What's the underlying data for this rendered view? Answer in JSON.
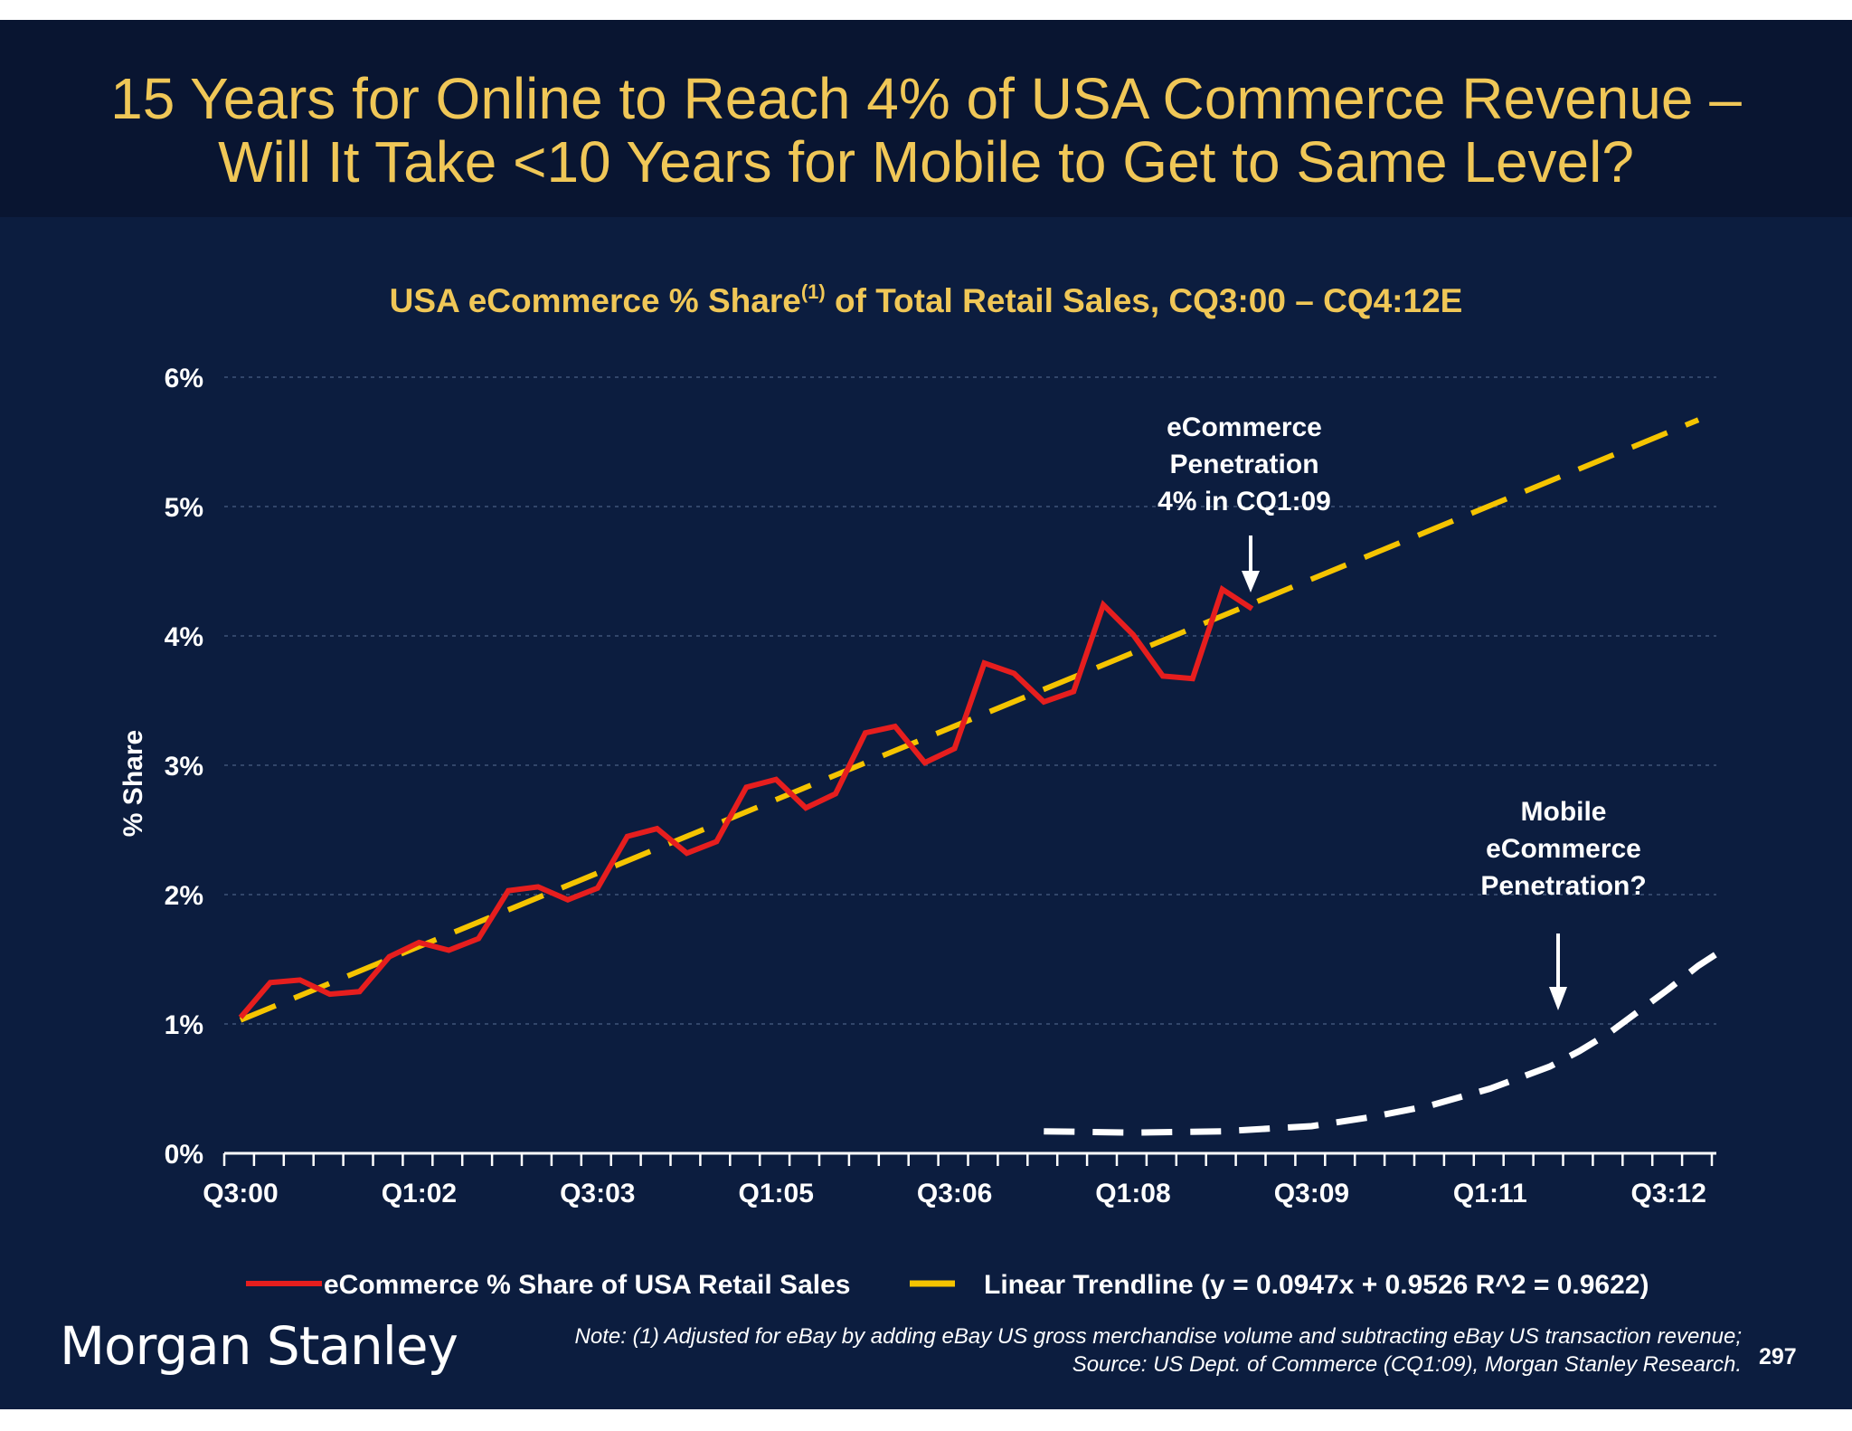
{
  "slide": {
    "title_line1": "15 Years for Online to Reach 4% of USA Commerce Revenue –",
    "title_line2": "Will It Take <10 Years for Mobile to Get to Same Level?",
    "note_line1": "Note: (1) Adjusted for eBay by adding eBay US gross merchandise volume and subtracting eBay US transaction revenue;",
    "note_line2": "Source: US Dept. of Commerce (CQ1:09), Morgan Stanley Research.",
    "page_number": "297",
    "logo_text": "Morgan Stanley"
  },
  "colors": {
    "background": "#0c1d3f",
    "header_background": "#091531",
    "title": "#f0c757",
    "ecommerce_line": "#e61e1e",
    "trendline": "#f5c400",
    "mobile_line": "#ffffff"
  },
  "chart_data": {
    "type": "line",
    "title_main": "USA eCommerce % Share",
    "title_sup": "(1)",
    "title_rest": " of Total Retail Sales, CQ3:00 – CQ4:12E",
    "ylabel": "% Share",
    "ylim": [
      0,
      6
    ],
    "y_ticks": [
      "0%",
      "1%",
      "2%",
      "3%",
      "4%",
      "5%",
      "6%"
    ],
    "x_tick_labels": [
      "Q3:00",
      "Q1:02",
      "Q3:03",
      "Q1:05",
      "Q3:06",
      "Q1:08",
      "Q3:09",
      "Q1:11",
      "Q3:12"
    ],
    "quarters_total": 50,
    "grid": true,
    "series": [
      {
        "name": "eCommerce % Share of USA Retail Sales",
        "style": "solid",
        "values": [
          1.05,
          1.32,
          1.34,
          1.23,
          1.25,
          1.52,
          1.63,
          1.57,
          1.66,
          2.03,
          2.06,
          1.96,
          2.05,
          2.45,
          2.51,
          2.32,
          2.41,
          2.83,
          2.89,
          2.67,
          2.78,
          3.25,
          3.3,
          3.02,
          3.13,
          3.79,
          3.71,
          3.49,
          3.57,
          4.24,
          4.01,
          3.69,
          3.67,
          4.36,
          4.21
        ]
      },
      {
        "name": "Linear Trendline (y = 0.0947x + 0.9526 R^2 = 0.9622)",
        "style": "dashed",
        "x": [
          0,
          49
        ],
        "values": [
          1.03,
          5.67
        ]
      },
      {
        "style": "dashed",
        "x": [
          27,
          30,
          33,
          36,
          38,
          40,
          42,
          44,
          45,
          46,
          47,
          48,
          49,
          50
        ],
        "values": [
          0.17,
          0.16,
          0.17,
          0.21,
          0.28,
          0.37,
          0.5,
          0.67,
          0.79,
          0.93,
          1.1,
          1.27,
          1.45,
          1.6
        ]
      }
    ],
    "annotations": {
      "ecommerce": [
        "eCommerce",
        "Penetration",
        "4% in CQ1:09"
      ],
      "mobile": [
        "Mobile",
        "eCommerce",
        "Penetration?"
      ]
    }
  }
}
